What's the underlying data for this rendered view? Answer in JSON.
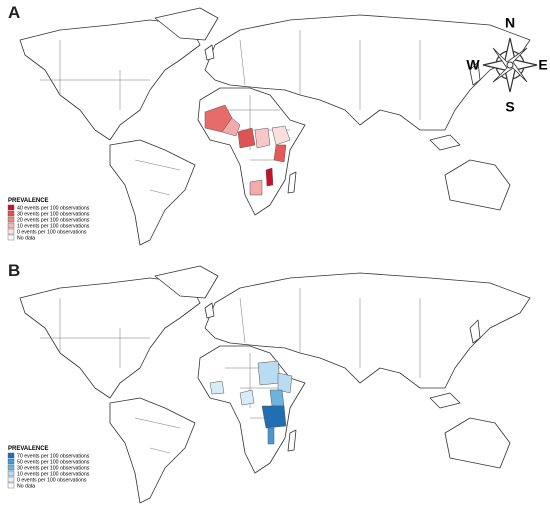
{
  "panel_a": {
    "label": "A",
    "legend": {
      "title": "PREVALENCE",
      "items": [
        "40 events per 100 observations",
        "30 events per 100 observations",
        "20 events per 100 observations",
        "10 events per 100 observations",
        "0 events per 100 observations",
        "No data"
      ]
    }
  },
  "panel_b": {
    "label": "B",
    "legend": {
      "title": "PREVALENCE",
      "items": [
        "70 events per 100 observations",
        "50 events per 100 observations",
        "30 events per 100 observations",
        "10 events per 100 observations",
        "0 events per 100 observations",
        "No data"
      ]
    }
  },
  "compass": {
    "n": "N",
    "e": "E",
    "s": "S",
    "w": "W"
  }
}
